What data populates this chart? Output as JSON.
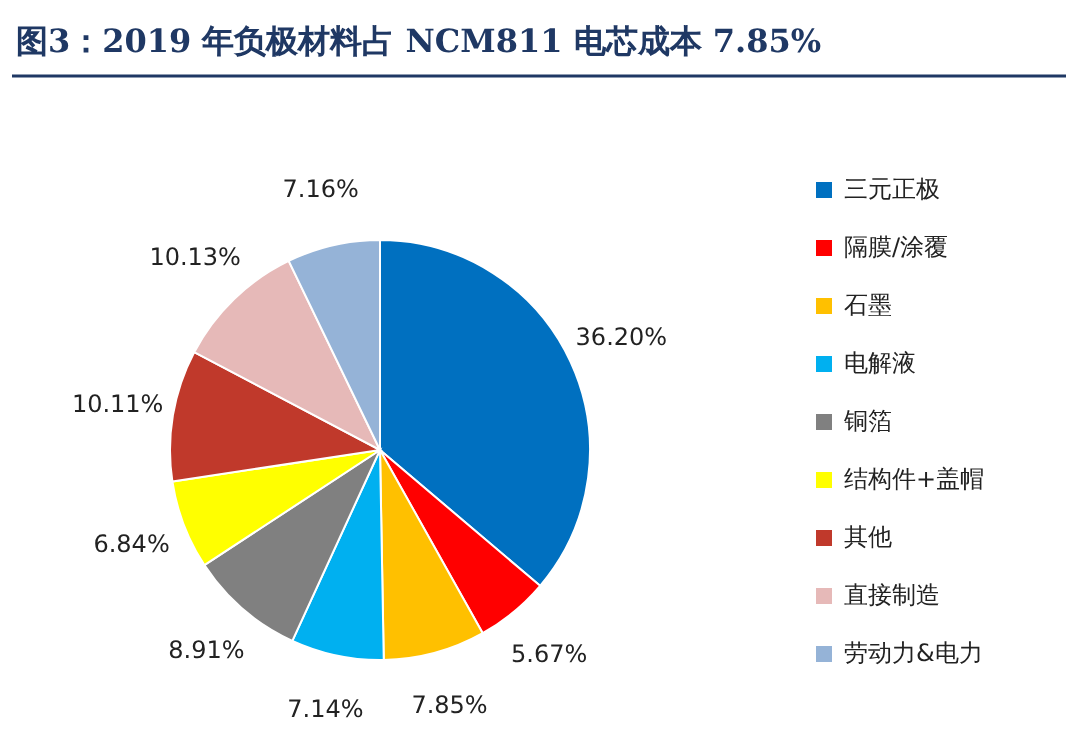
{
  "chart_data": {
    "type": "pie",
    "title": "图3：2019 年负极材料占 NCM811 电芯成本 7.85%",
    "categories": [
      "三元正极",
      "隔膜/涂覆",
      "石墨",
      "电解液",
      "铜箔",
      "结构件+盖帽",
      "其他",
      "直接制造",
      "劳动力&电力"
    ],
    "values": [
      36.2,
      5.67,
      7.85,
      7.14,
      8.91,
      6.84,
      10.11,
      10.13,
      7.16
    ],
    "value_labels": [
      "36.20%",
      "5.67%",
      "7.85%",
      "7.14%",
      "8.91%",
      "6.84%",
      "10.11%",
      "10.13%",
      "7.16%"
    ],
    "colors": [
      "#0070c0",
      "#ff0000",
      "#ffc000",
      "#00b0f0",
      "#808080",
      "#ffff00",
      "#c0392b",
      "#e6b9b8",
      "#95b3d7"
    ],
    "legend": "right"
  }
}
